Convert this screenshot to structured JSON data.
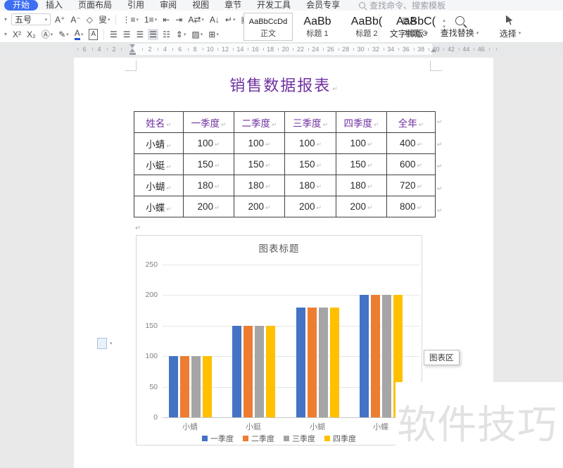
{
  "colors": {
    "accent": "#3e6ef2",
    "title_purple": "#7030a0",
    "watermark_gray": "#e2e2e2",
    "table_border": "#404040"
  },
  "tabs": {
    "items": [
      {
        "label": "开始",
        "active": true
      },
      {
        "label": "插入"
      },
      {
        "label": "页面布局"
      },
      {
        "label": "引用"
      },
      {
        "label": "审阅"
      },
      {
        "label": "视图"
      },
      {
        "label": "章节"
      },
      {
        "label": "开发工具"
      },
      {
        "label": "会员专享"
      }
    ],
    "search_placeholder": "查找命令、搜索模板"
  },
  "toolbar": {
    "caret": "▾",
    "font_size": "五号",
    "row1": [
      {
        "n": "font-family-caret",
        "g": "▾",
        "t": "stub"
      },
      {
        "n": "font-size-select",
        "t": "fs"
      },
      {
        "n": "increase-font-size-icon",
        "g": "A⁺"
      },
      {
        "n": "decrease-font-size-icon",
        "g": "A⁻"
      },
      {
        "n": "clear-format-icon",
        "g": "◇"
      },
      {
        "n": "text-tool-icon",
        "g": "叟",
        "c": true
      },
      {
        "n": "toolbar-separator",
        "t": "div"
      },
      {
        "n": "bullet-list-icon",
        "g": "⋮≡",
        "c": true
      },
      {
        "n": "numbered-list-icon",
        "g": "1≡",
        "c": true
      },
      {
        "n": "decrease-indent-icon",
        "g": "⇤"
      },
      {
        "n": "increase-indent-icon",
        "g": "⇥"
      },
      {
        "n": "asian-layout-icon",
        "g": "A⇄",
        "c": true
      },
      {
        "n": "sort-icon",
        "g": "A↓"
      },
      {
        "n": "formatting-marks-icon",
        "g": "↵",
        "c": true
      },
      {
        "n": "paragraph-layout-icon",
        "g": "▣"
      }
    ],
    "row2": [
      {
        "n": "font-box-caret",
        "g": "▾",
        "t": "stub"
      },
      {
        "n": "superscript-icon",
        "g": "X²"
      },
      {
        "n": "subscript-icon",
        "g": "X₂"
      },
      {
        "n": "phonetic-guide-icon",
        "g": "Ⓐ",
        "c": true
      },
      {
        "n": "highlight-icon",
        "g": "✎",
        "c": true
      },
      {
        "n": "font-color-icon",
        "g": "A",
        "t": "fc",
        "c": true
      },
      {
        "n": "char-border-icon",
        "g": "A",
        "t": "cb"
      },
      {
        "n": "toolbar-separator",
        "t": "div"
      },
      {
        "n": "align-left-icon",
        "g": "☰"
      },
      {
        "n": "align-center-icon",
        "g": "☰"
      },
      {
        "n": "align-right-icon",
        "g": "☰"
      },
      {
        "n": "justify-icon",
        "g": "☰",
        "t": "hl"
      },
      {
        "n": "distribute-icon",
        "g": "☷"
      },
      {
        "n": "line-spacing-icon",
        "g": "⇕",
        "c": true
      },
      {
        "n": "shading-icon",
        "g": "▨",
        "c": true
      },
      {
        "n": "borders-icon",
        "g": "⊞",
        "c": true
      }
    ],
    "styles": [
      {
        "sample": "AaBbCcDd",
        "label": "正文",
        "selected": true
      },
      {
        "sample": "AaBb",
        "label": "标题 1"
      },
      {
        "sample": "AaBb(",
        "label": "标题 2"
      },
      {
        "sample": "AaBbC(",
        "label": "标题 3"
      }
    ],
    "gallery_controls": [
      {
        "n": "style-gallery-up-icon",
        "g": "▴"
      },
      {
        "n": "style-gallery-down-icon",
        "g": "▾"
      },
      {
        "n": "style-gallery-more-icon",
        "g": "☰"
      }
    ],
    "tools_right": [
      {
        "n": "text-layout-button",
        "label": "文字排版",
        "cls": "tl-icon",
        "g": "≣A"
      },
      {
        "n": "find-replace-button",
        "label": "查找替换",
        "cls": "fr-icon"
      },
      {
        "n": "select-button",
        "label": "选择",
        "cls": "sel-icon"
      }
    ]
  },
  "ruler": {
    "left_numbers": [
      "6",
      "4",
      "2"
    ],
    "right_numbers": [
      "2",
      "4",
      "6",
      "8",
      "10",
      "12",
      "14",
      "16",
      "18",
      "20",
      "22",
      "24",
      "26",
      "28",
      "30",
      "32",
      "34",
      "36",
      "38",
      "40",
      "42",
      "44",
      "46"
    ]
  },
  "document": {
    "title": "销售数据报表",
    "paragraph_mark": "↵",
    "table": {
      "headers": [
        "姓名",
        "一季度",
        "二季度",
        "三季度",
        "四季度",
        "全年"
      ],
      "rows": [
        [
          "小蜻",
          "100",
          "100",
          "100",
          "100",
          "400"
        ],
        [
          "小蜓",
          "150",
          "150",
          "150",
          "150",
          "600"
        ],
        [
          "小蝴",
          "180",
          "180",
          "180",
          "180",
          "720"
        ],
        [
          "小蝶",
          "200",
          "200",
          "200",
          "200",
          "800"
        ]
      ]
    },
    "tooltip": "图表区",
    "watermark": "软件技巧"
  },
  "chart_data": {
    "type": "bar",
    "title": "图表标题",
    "categories": [
      "小蜻",
      "小蜓",
      "小蝴",
      "小蝶"
    ],
    "series": [
      {
        "name": "一季度",
        "color": "#4472c4",
        "values": [
          100,
          150,
          180,
          200
        ]
      },
      {
        "name": "二季度",
        "color": "#ed7d31",
        "values": [
          100,
          150,
          180,
          200
        ]
      },
      {
        "name": "三季度",
        "color": "#a5a5a5",
        "values": [
          100,
          150,
          180,
          200
        ]
      },
      {
        "name": "四季度",
        "color": "#ffc000",
        "values": [
          100,
          150,
          180,
          200
        ]
      }
    ],
    "xlabel": "",
    "ylabel": "",
    "ylim": [
      0,
      250
    ],
    "ytick_step": 50,
    "grid": true,
    "legend_position": "bottom"
  }
}
